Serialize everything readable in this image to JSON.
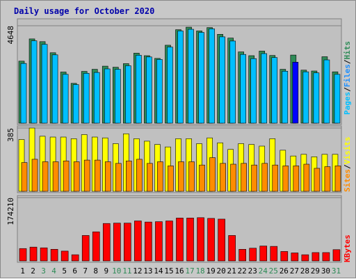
{
  "chart_data": {
    "type": "bar",
    "title": "Daily usage for October 2020",
    "categories": [
      "1",
      "2",
      "3",
      "4",
      "5",
      "6",
      "7",
      "8",
      "9",
      "10",
      "11",
      "12",
      "13",
      "14",
      "15",
      "16",
      "17",
      "18",
      "19",
      "20",
      "21",
      "22",
      "23",
      "24",
      "25",
      "26",
      "27",
      "28",
      "29",
      "30",
      "31"
    ],
    "weekend_days": [
      "3",
      "4",
      "10",
      "11",
      "17",
      "18",
      "24",
      "25",
      "31"
    ],
    "panels": [
      {
        "name": "hits_files_pages",
        "max_label": "4648",
        "ymax": 4648,
        "ylabel_parts": [
          "Pages",
          "/",
          "Files",
          "/",
          "Hits"
        ],
        "series": [
          {
            "name": "Hits",
            "color": "#2e8b57",
            "values": [
              2960,
              4020,
              3890,
              3360,
              2440,
              1900,
              2470,
              2570,
              2720,
              2670,
              2840,
              3340,
              3220,
              3090,
              3720,
              4460,
              4580,
              4400,
              4560,
              4240,
              4060,
              3400,
              3220,
              3440,
              3230,
              2570,
              3250,
              2530,
              2490,
              3170,
              2450
            ]
          },
          {
            "name": "Files",
            "color": "#1e90ff",
            "values": [
              2850,
              3930,
              3760,
              3260,
              2330,
              1840,
              2380,
              2420,
              2590,
              2570,
              2740,
              3240,
              3160,
              3040,
              3630,
              4400,
              4480,
              4330,
              4500,
              4120,
              3920,
              3280,
              3080,
              3320,
              3130,
              2480,
              2910,
              2450,
              2400,
              3020,
              2330
            ]
          },
          {
            "name": "Pages",
            "color": "#00bfff",
            "values": [
              2850,
              3930,
              3760,
              3260,
              2330,
              1840,
              2380,
              2420,
              2590,
              2570,
              2740,
              3240,
              3160,
              3040,
              3630,
              4400,
              4480,
              4330,
              4500,
              4120,
              3920,
              3280,
              3080,
              3320,
              3130,
              2480,
              2910,
              2450,
              2400,
              3020,
              2330
            ]
          }
        ],
        "highlight": {
          "category": "27",
          "series": "Files",
          "color": "#0000ff"
        }
      },
      {
        "name": "visits_sites",
        "max_label": "385",
        "ymax": 385,
        "ylabel_parts": [
          "Sites",
          "/",
          "Visits"
        ],
        "series": [
          {
            "name": "Visits",
            "color": "#ffff00",
            "values": [
              315,
              385,
              335,
              330,
              330,
              320,
              345,
              330,
              325,
              290,
              350,
              320,
              305,
              285,
              270,
              320,
              320,
              290,
              325,
              295,
              255,
              290,
              285,
              275,
              320,
              250,
              215,
              225,
              210,
              225,
              225
            ]
          },
          {
            "name": "Sites",
            "color": "#ff8c00",
            "values": [
              175,
              195,
              180,
              180,
              185,
              180,
              190,
              190,
              180,
              170,
              185,
              195,
              170,
              180,
              155,
              180,
              180,
              160,
              205,
              170,
              165,
              170,
              160,
              170,
              160,
              155,
              155,
              165,
              140,
              150,
              155
            ]
          }
        ]
      },
      {
        "name": "kbytes",
        "max_label": "174210",
        "ymax": 174210,
        "ylabel_parts": [
          "KBytes"
        ],
        "series": [
          {
            "name": "KBytes",
            "color": "#ff0000",
            "values": [
              34000,
              38000,
              36000,
              32000,
              27000,
              17000,
              70000,
              80000,
              103000,
              104000,
              104000,
              110000,
              107000,
              108000,
              110000,
              118000,
              118000,
              119000,
              117000,
              115000,
              70000,
              32000,
              35000,
              41000,
              40000,
              26000,
              22000,
              17000,
              23000,
              23000,
              31000
            ]
          }
        ]
      }
    ]
  },
  "colors": {
    "background": "#c8c8c8",
    "title": "#0000aa",
    "weekend_label": "#2e8b57",
    "weekday_label": "#000000",
    "gridline": "#808080"
  }
}
